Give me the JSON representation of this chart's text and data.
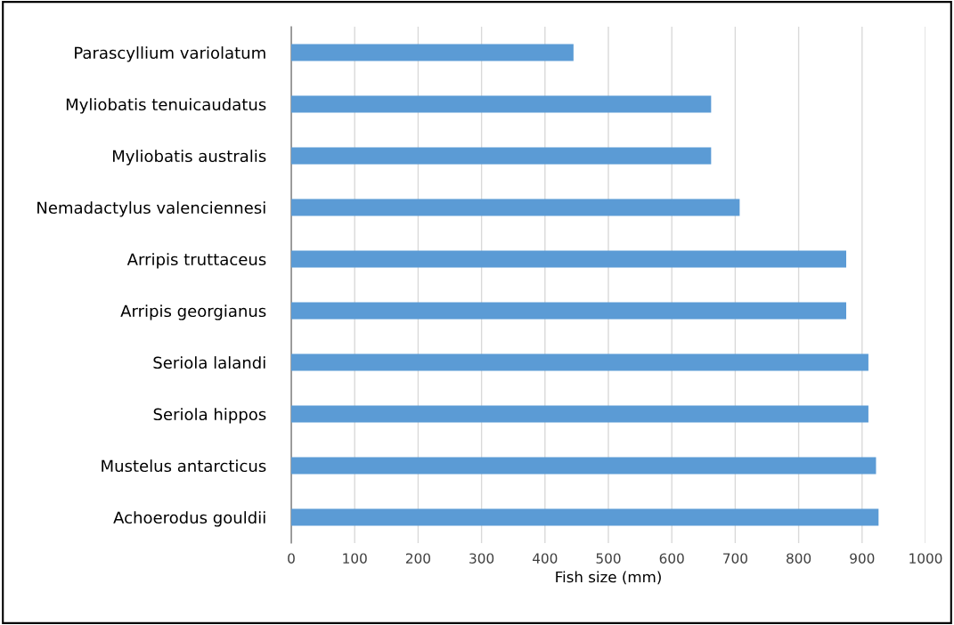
{
  "chart_data": {
    "type": "bar",
    "orientation": "horizontal",
    "xlabel": "Fish size (mm)",
    "categories": [
      "Parascyllium variolatum",
      "Myliobatis tenuicaudatus",
      "Myliobatis australis",
      "Nemadactylus valenciennesi",
      "Arripis truttaceus",
      "Arripis georgianus",
      "Seriola lalandi",
      "Seriola hippos",
      "Mustelus antarcticus",
      "Achoerodus gouldii"
    ],
    "values": [
      445,
      662,
      662,
      707,
      875,
      875,
      910,
      910,
      922,
      926
    ],
    "color": "#5b9bd5",
    "xlim": [
      0,
      1000
    ],
    "xticks": [
      0,
      100,
      200,
      300,
      400,
      500,
      600,
      700,
      800,
      900,
      1000
    ],
    "grid": "x"
  }
}
